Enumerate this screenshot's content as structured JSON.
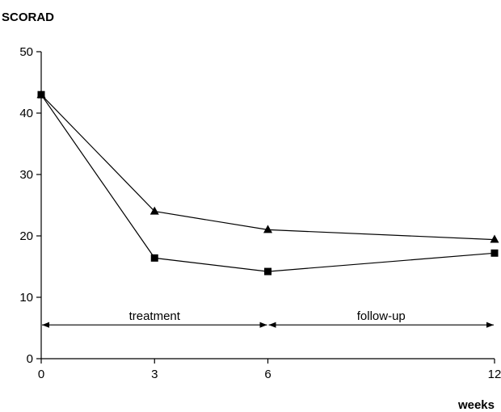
{
  "chart_data": {
    "type": "line",
    "ylabel": "SCORAD",
    "xlabel": "weeks",
    "x": [
      0,
      3,
      6,
      12
    ],
    "x_tick_labels": [
      "0",
      "3",
      "6",
      "12"
    ],
    "y_ticks": [
      0,
      10,
      20,
      30,
      40,
      50
    ],
    "ylim": [
      0,
      50
    ],
    "grid": false,
    "series": [
      {
        "marker": "triangle",
        "values": [
          43,
          24,
          21,
          19.4
        ]
      },
      {
        "marker": "square",
        "values": [
          43,
          16.4,
          14.2,
          17.2
        ]
      }
    ],
    "phases": [
      {
        "label": "treatment",
        "start": 0,
        "end": 6,
        "level": 5.5
      },
      {
        "label": "follow-up",
        "start": 6,
        "end": 12,
        "level": 5.5
      }
    ]
  }
}
